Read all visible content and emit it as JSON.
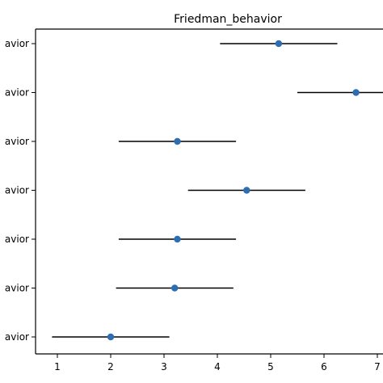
{
  "chart_data": {
    "type": "scatter",
    "title": "Friedman_behavior",
    "xlabel": "",
    "ylabel": "",
    "xlim": [
      0.6,
      7.1
    ],
    "xticks": [
      1,
      2,
      3,
      4,
      5,
      6,
      7
    ],
    "categories": [
      "avior",
      "avior",
      "avior",
      "avior",
      "avior",
      "avior",
      "avior"
    ],
    "values": [
      5.15,
      6.6,
      3.25,
      4.55,
      3.25,
      3.2,
      2.0
    ],
    "ci_low": [
      4.05,
      5.5,
      2.15,
      3.45,
      2.15,
      2.1,
      0.9
    ],
    "ci_high": [
      6.25,
      7.7,
      4.35,
      5.65,
      4.35,
      4.3,
      3.1
    ],
    "marker_color": "#2f6db3",
    "errorbar_color": "#000000",
    "grid": false
  }
}
